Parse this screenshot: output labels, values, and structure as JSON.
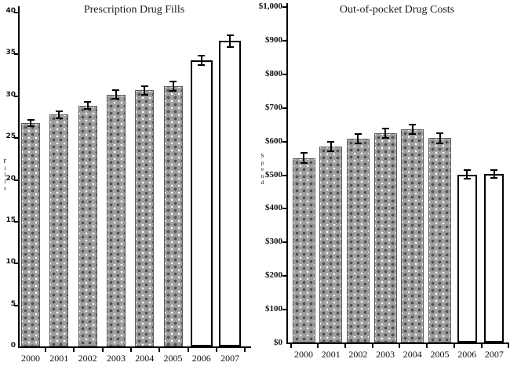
{
  "figure": {
    "background": "#ffffff",
    "bar_pattern_color": "#9c9c9c",
    "bar_white_color": "#ffffff",
    "error_bar_color": "#000000",
    "axis_color": "#000000"
  },
  "chart_data": [
    {
      "type": "bar",
      "title": "Prescription Drug Fills",
      "ylabel": "Fills",
      "categories": [
        "2000",
        "2001",
        "2002",
        "2003",
        "2004",
        "2005",
        "2006",
        "2007"
      ],
      "values": [
        26.7,
        27.7,
        28.8,
        30.1,
        30.6,
        31.1,
        34.2,
        36.5
      ],
      "errors": [
        0.4,
        0.4,
        0.4,
        0.5,
        0.5,
        0.6,
        0.6,
        0.7
      ],
      "bar_styles": [
        "pattern",
        "pattern",
        "pattern",
        "pattern",
        "pattern",
        "pattern",
        "white",
        "white"
      ],
      "ylim": [
        0,
        40
      ],
      "ytick_values": [
        0,
        5,
        10,
        15,
        20,
        25,
        30,
        35,
        40
      ],
      "ytick_labels": [
        "0",
        "5",
        "10",
        "15",
        "20",
        "25",
        "30",
        "35",
        "40"
      ],
      "grid": false,
      "legend": null
    },
    {
      "type": "bar",
      "title": "Out-of-pocket Drug Costs",
      "ylabel": "Spend",
      "categories": [
        "2000",
        "2001",
        "2002",
        "2003",
        "2004",
        "2005",
        "2006",
        "2007"
      ],
      "values": [
        548,
        583,
        606,
        622,
        633,
        608,
        500,
        501
      ],
      "errors": [
        15,
        14,
        14,
        14,
        14,
        15,
        12,
        12
      ],
      "bar_styles": [
        "pattern",
        "pattern",
        "pattern",
        "pattern",
        "pattern",
        "pattern",
        "white",
        "white"
      ],
      "ylim": [
        0,
        1000
      ],
      "ytick_values": [
        0,
        100,
        200,
        300,
        400,
        500,
        600,
        700,
        800,
        900,
        1000
      ],
      "ytick_labels": [
        "$0",
        "$100",
        "$200",
        "$300",
        "$400",
        "$500",
        "$600",
        "$700",
        "$800",
        "$900",
        "$1,000"
      ],
      "grid": false,
      "legend": null
    }
  ]
}
